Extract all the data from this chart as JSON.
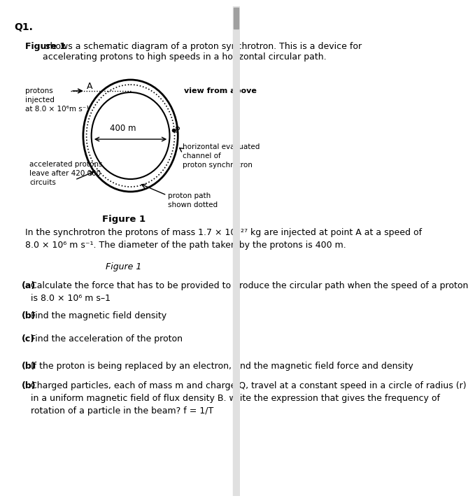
{
  "q_label": "Q1.",
  "fig1_bold_prefix": "Figure 1",
  "fig1_intro": " shows a schematic diagram of a proton synchrotron. This is a device for\naccelerating protons to high speeds in a horizontal circular path.",
  "label_protons": "protons\ninjected\nat 8.0 × 10⁶m s⁻¹",
  "label_A": "A",
  "label_P": "P",
  "label_view": "view from above",
  "label_400m": "400 m",
  "label_accel": "accelerated protons\nleave after 420 000\ncircuits",
  "label_horiz": "horizontal evacuated\nchannel of\nproton synchrotron",
  "label_proton_path": "proton path\nshown dotted",
  "fig1_caption": "Figure 1",
  "desc_text": "In the synchrotron the protons of mass 1.7 × 10⁻²⁷ kg are injected at point A at a speed of\n8.0 × 10⁶ m s⁻¹. The diameter of the path taken by the protons is 400 m.",
  "fig1_italic": "Figure 1",
  "qa_label": "(a)",
  "qa_text": "Calculate the force that has to be provided to produce the circular path when the speed of a proton\nis 8.0 × 10⁶ m s–1",
  "qb_label": "(b)",
  "qb_text": "Find the magnetic field density",
  "qc_label": "(c)",
  "qc_text": "Find the acceleration of the proton",
  "qb2_label": "(b)",
  "qb2_text": "If the proton is being replaced by an electron, find the magnetic field force and density",
  "qb3_label": "(b)",
  "qb3_text": "Charged particles, each of mass m and charge Q, travel at a constant speed in a circle of radius (r)\nin a uniform magnetic field of flux density B. write the expression that gives the frequency of\nrotation of a particle in the beam? f = 1/T",
  "bg_color": "#ffffff",
  "text_color": "#000000"
}
